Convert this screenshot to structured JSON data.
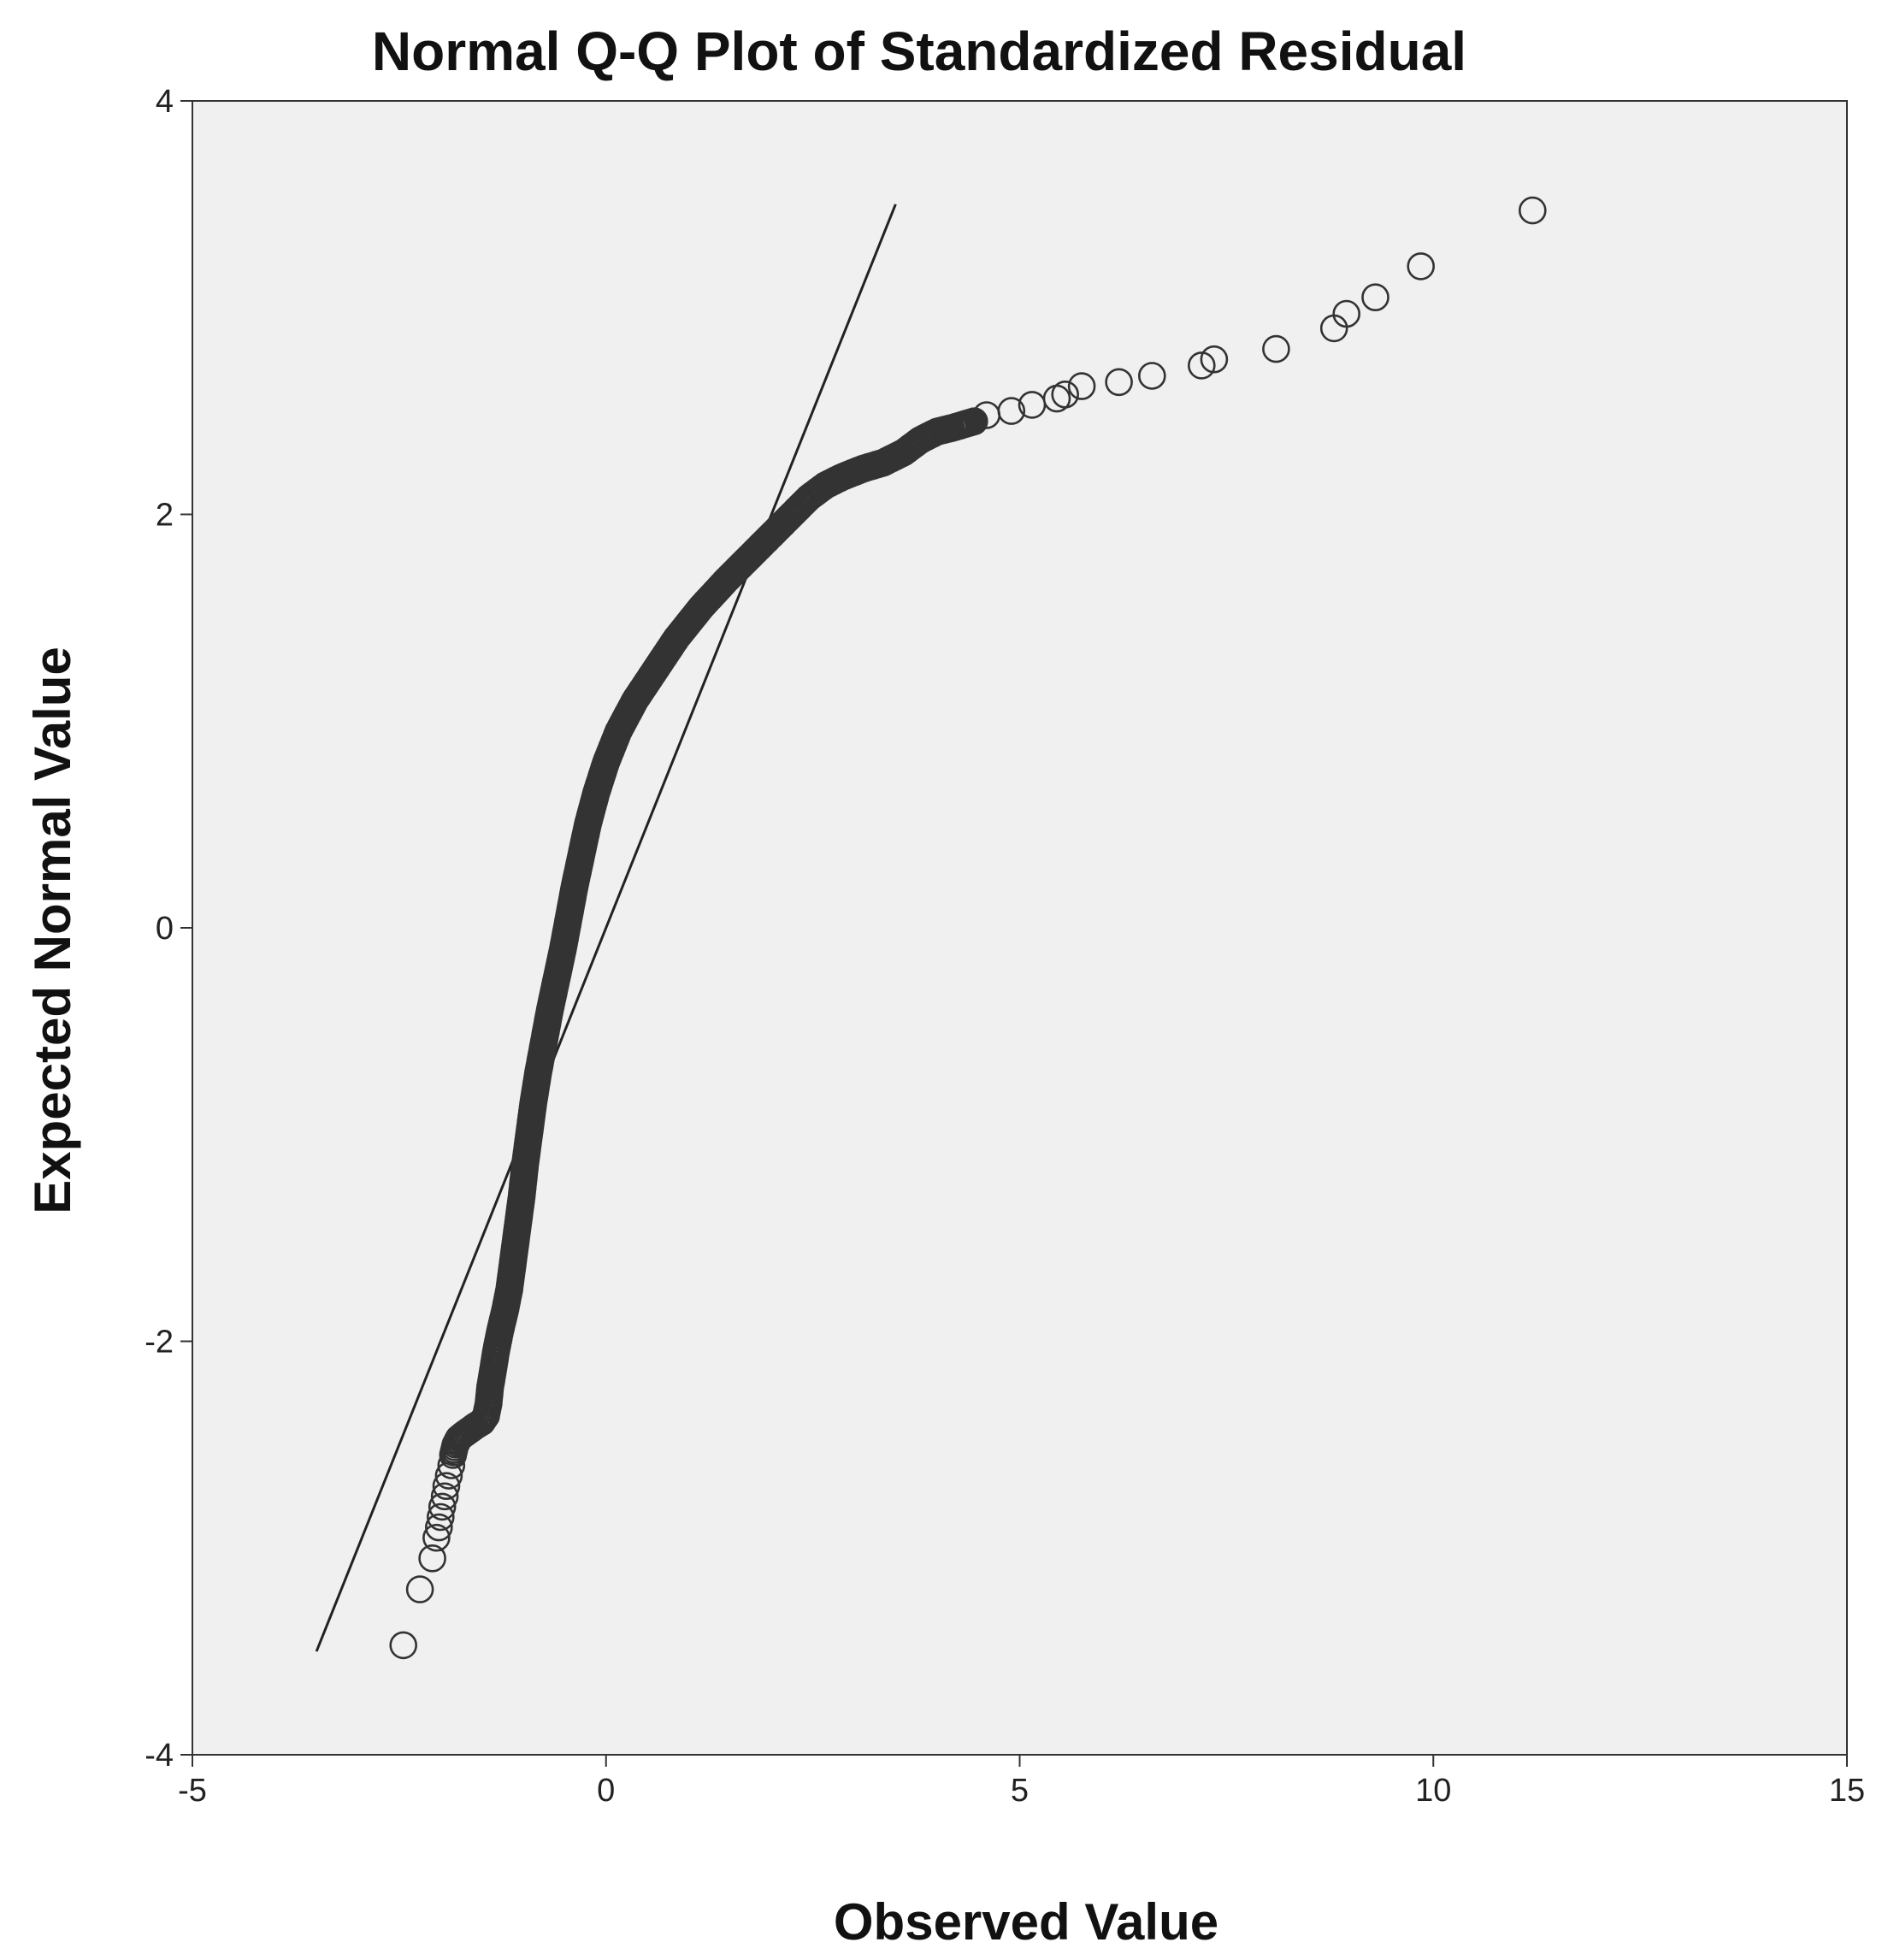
{
  "chart_data": {
    "type": "scatter",
    "title": "Normal Q-Q Plot of Standardized Residual",
    "xlabel": "Observed Value",
    "ylabel": "Expected Normal Value",
    "xlim": [
      -5,
      15
    ],
    "ylim": [
      -4,
      4
    ],
    "xticks": [
      "-5",
      "0",
      "5",
      "10",
      "15"
    ],
    "yticks": [
      "4",
      "2",
      "0",
      "-2",
      "-4"
    ],
    "xtick_values": [
      -5,
      0,
      5,
      10,
      15
    ],
    "ytick_values": [
      4,
      2,
      0,
      -2,
      -4
    ],
    "reference_line": {
      "x": [
        -3.5,
        3.5
      ],
      "y": [
        -3.5,
        3.5
      ]
    },
    "grid": false,
    "plot_background": "#f0f0f0",
    "marker": "open-circle",
    "marker_color": "#333333",
    "points": [
      [
        -2.45,
        -3.47
      ],
      [
        -2.25,
        -3.2
      ],
      [
        -2.1,
        -3.05
      ],
      [
        -2.05,
        -2.95
      ],
      [
        -2.02,
        -2.9
      ],
      [
        -2.0,
        -2.85
      ],
      [
        -1.98,
        -2.8
      ],
      [
        -1.95,
        -2.75
      ],
      [
        -1.93,
        -2.7
      ],
      [
        -1.9,
        -2.65
      ],
      [
        -1.87,
        -2.6
      ],
      [
        -1.85,
        -2.55
      ],
      [
        -1.82,
        -2.5
      ],
      [
        -1.78,
        -2.47
      ],
      [
        -1.72,
        -2.45
      ],
      [
        -1.65,
        -2.43
      ],
      [
        -1.58,
        -2.41
      ],
      [
        -1.5,
        -2.39
      ],
      [
        -1.45,
        -2.36
      ],
      [
        -1.42,
        -2.3
      ],
      [
        -1.4,
        -2.22
      ],
      [
        -1.37,
        -2.15
      ],
      [
        -1.33,
        -2.05
      ],
      [
        -1.28,
        -1.95
      ],
      [
        -1.22,
        -1.85
      ],
      [
        -1.17,
        -1.75
      ],
      [
        -1.12,
        -1.6
      ],
      [
        -1.07,
        -1.45
      ],
      [
        -1.02,
        -1.3
      ],
      [
        -0.98,
        -1.15
      ],
      [
        -0.93,
        -1.0
      ],
      [
        -0.88,
        -0.85
      ],
      [
        -0.82,
        -0.7
      ],
      [
        -0.75,
        -0.55
      ],
      [
        -0.68,
        -0.4
      ],
      [
        -0.6,
        -0.25
      ],
      [
        -0.52,
        -0.1
      ],
      [
        -0.45,
        0.05
      ],
      [
        -0.38,
        0.2
      ],
      [
        -0.3,
        0.35
      ],
      [
        -0.22,
        0.5
      ],
      [
        -0.12,
        0.65
      ],
      [
        0.0,
        0.8
      ],
      [
        0.15,
        0.95
      ],
      [
        0.35,
        1.1
      ],
      [
        0.6,
        1.25
      ],
      [
        0.85,
        1.4
      ],
      [
        1.15,
        1.55
      ],
      [
        1.45,
        1.68
      ],
      [
        1.75,
        1.8
      ],
      [
        2.0,
        1.9
      ],
      [
        2.25,
        2.0
      ],
      [
        2.45,
        2.08
      ],
      [
        2.65,
        2.14
      ],
      [
        2.85,
        2.18
      ],
      [
        3.1,
        2.22
      ],
      [
        3.35,
        2.25
      ],
      [
        3.6,
        2.3
      ],
      [
        3.8,
        2.36
      ],
      [
        4.0,
        2.4
      ],
      [
        4.2,
        2.42
      ],
      [
        4.45,
        2.45
      ],
      [
        4.6,
        2.48
      ],
      [
        4.9,
        2.5
      ],
      [
        5.15,
        2.53
      ],
      [
        5.45,
        2.56
      ],
      [
        5.55,
        2.58
      ],
      [
        5.75,
        2.62
      ],
      [
        6.2,
        2.64
      ],
      [
        6.6,
        2.67
      ],
      [
        7.2,
        2.72
      ],
      [
        7.35,
        2.75
      ],
      [
        8.1,
        2.8
      ],
      [
        8.8,
        2.9
      ],
      [
        8.95,
        2.97
      ],
      [
        9.3,
        3.05
      ],
      [
        9.85,
        3.2
      ],
      [
        11.2,
        3.47
      ]
    ]
  }
}
